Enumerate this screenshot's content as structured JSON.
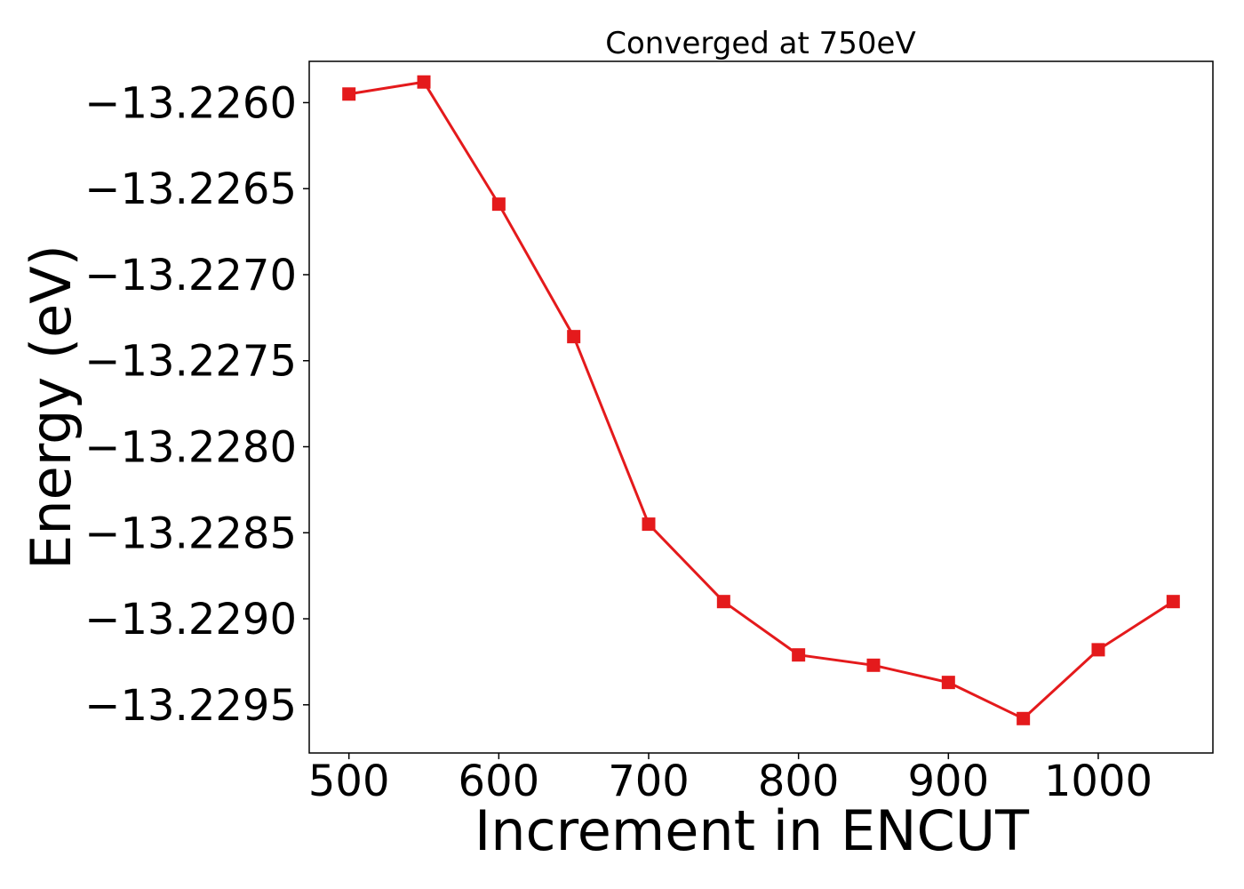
{
  "chart_data": {
    "type": "line",
    "title": "Converged at 750eV",
    "xlabel": "Increment in ENCUT",
    "ylabel": "Energy (eV)",
    "x": [
      500,
      550,
      600,
      650,
      700,
      750,
      800,
      850,
      900,
      950,
      1000,
      1050
    ],
    "series": [
      {
        "values": [
          -13.22595,
          -13.22588,
          -13.22659,
          -13.22736,
          -13.22845,
          -13.2289,
          -13.22921,
          -13.22927,
          -13.22937,
          -13.22958,
          -13.22918,
          -13.2289
        ],
        "color": "#e41a1c",
        "marker": "square"
      }
    ],
    "xticks": [
      500,
      600,
      700,
      800,
      900,
      1000
    ],
    "xtick_labels": [
      "500",
      "600",
      "700",
      "800",
      "900",
      "1000"
    ],
    "yticks": [
      -13.2295,
      -13.229,
      -13.2285,
      -13.228,
      -13.2275,
      -13.227,
      -13.2265,
      -13.226
    ],
    "ytick_labels": [
      "−13.2295",
      "−13.2290",
      "−13.2285",
      "−13.2280",
      "−13.2275",
      "−13.2270",
      "−13.2265",
      "−13.2260"
    ],
    "xlim": [
      473.5,
      1076.5
    ],
    "ylim": [
      -13.22978,
      -13.22576
    ],
    "grid": false,
    "legend": "none"
  }
}
